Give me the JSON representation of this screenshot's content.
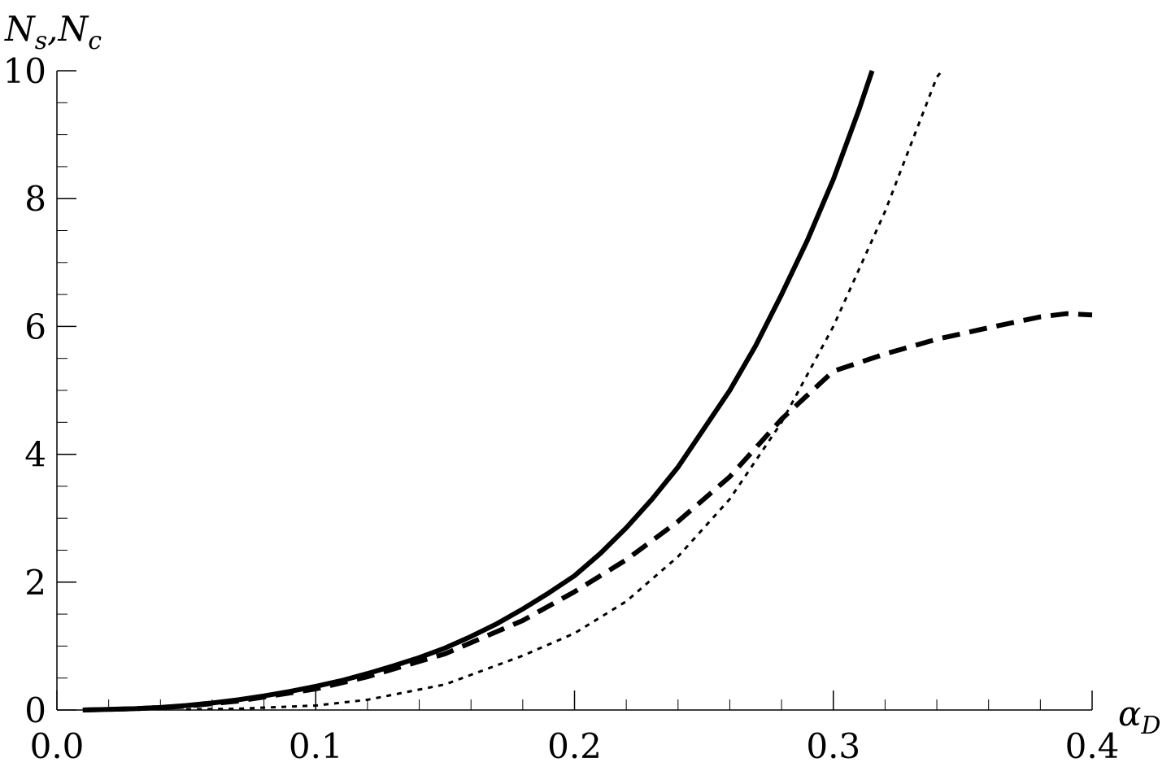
{
  "chart_data": {
    "type": "line",
    "ylabel": [
      "N",
      "s",
      ",N",
      "c"
    ],
    "xlabel": [
      "α",
      "D"
    ],
    "xlim": [
      0,
      0.4
    ],
    "ylim": [
      0,
      10
    ],
    "xticks": [
      {
        "value": 0,
        "label": "0.0"
      },
      0.1,
      0.2,
      0.3,
      0.4
    ],
    "yticks": [
      0,
      2,
      4,
      6,
      8,
      10
    ],
    "x_minor_per_major": 5,
    "y_minor_per_major": 4,
    "series": [
      {
        "color": "#000000",
        "style": "solid",
        "x": [
          0.01,
          0.02,
          0.03,
          0.04,
          0.05,
          0.06,
          0.07,
          0.08,
          0.09,
          0.1,
          0.11,
          0.12,
          0.13,
          0.14,
          0.15,
          0.16,
          0.17,
          0.18,
          0.19,
          0.2,
          0.21,
          0.22,
          0.23,
          0.24,
          0.25,
          0.26,
          0.27,
          0.28,
          0.29,
          0.3,
          0.31,
          0.315
        ],
        "values": [
          0,
          0.01,
          0.02,
          0.04,
          0.07,
          0.11,
          0.16,
          0.22,
          0.29,
          0.37,
          0.46,
          0.57,
          0.69,
          0.82,
          0.97,
          1.15,
          1.35,
          1.58,
          1.83,
          2.1,
          2.45,
          2.85,
          3.3,
          3.8,
          4.4,
          5.0,
          5.7,
          6.5,
          7.35,
          8.3,
          9.4,
          10
        ]
      },
      {
        "color": "#000000",
        "style": "dashed",
        "x": [
          0.01,
          0.03,
          0.05,
          0.07,
          0.1,
          0.12,
          0.15,
          0.18,
          0.2,
          0.22,
          0.24,
          0.26,
          0.28,
          0.3,
          0.32,
          0.34,
          0.36,
          0.38,
          0.39,
          0.4
        ],
        "values": [
          0,
          0.02,
          0.06,
          0.14,
          0.33,
          0.52,
          0.88,
          1.4,
          1.85,
          2.35,
          2.95,
          3.65,
          4.55,
          5.3,
          5.57,
          5.8,
          5.98,
          6.15,
          6.2,
          6.18
        ]
      },
      {
        "color": "#000000",
        "style": "dotted",
        "x": [
          0.05,
          0.07,
          0.1,
          0.12,
          0.15,
          0.18,
          0.2,
          0.22,
          0.24,
          0.26,
          0.28,
          0.3,
          0.32,
          0.34,
          0.342
        ],
        "values": [
          0.01,
          0.02,
          0.07,
          0.16,
          0.4,
          0.85,
          1.2,
          1.7,
          2.4,
          3.3,
          4.5,
          6.0,
          7.8,
          9.9,
          10
        ]
      }
    ]
  }
}
